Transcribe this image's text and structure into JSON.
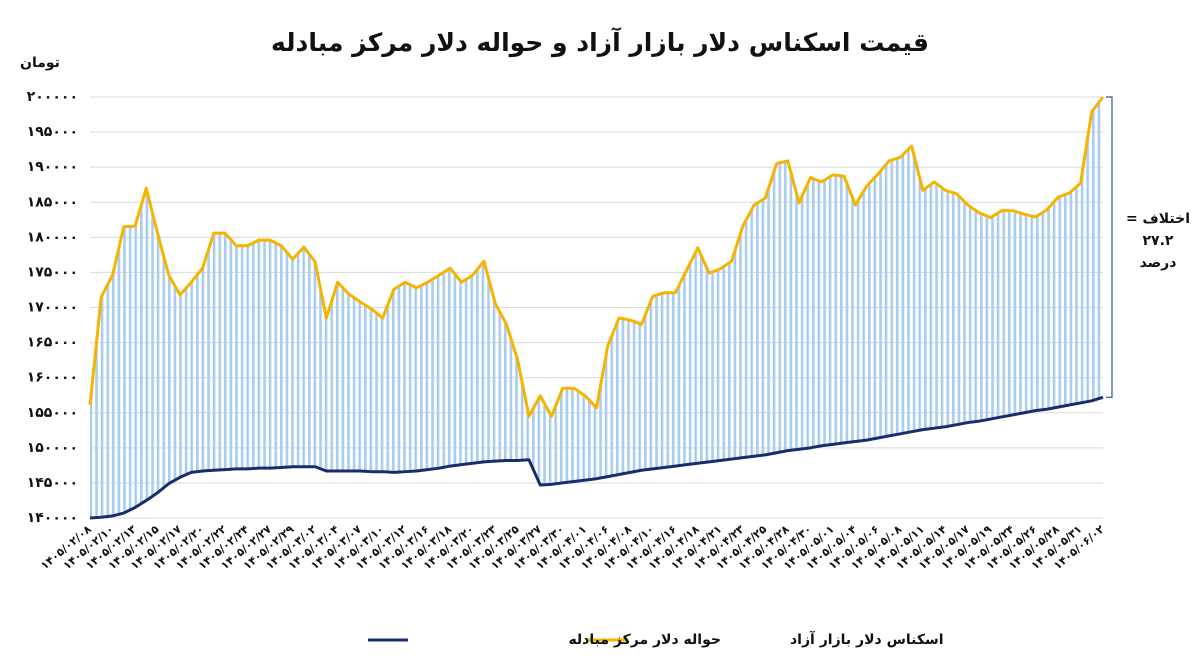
{
  "chart_data": {
    "type": "line",
    "title": "قیمت اسکناس دلار بازار آزاد و حواله دلار مرکز مبادله",
    "y_label": "تومان",
    "annotation": [
      "اختلاف =",
      "۲۷.۲",
      "درصد"
    ],
    "categories": [
      "۱۴۰۵/۰۲/۰۸",
      null,
      "۱۴۰۵/۰۲/۱۰",
      null,
      "۱۴۰۵/۰۲/۱۳",
      null,
      "۱۴۰۵/۰۲/۱۵",
      null,
      "۱۴۰۵/۰۲/۱۷",
      null,
      "۱۴۰۵/۰۲/۲۰",
      null,
      "۱۴۰۵/۰۲/۲۲",
      null,
      "۱۴۰۵/۰۲/۲۴",
      null,
      "۱۴۰۵/۰۲/۲۷",
      null,
      "۱۴۰۵/۰۲/۲۹",
      null,
      "۱۴۰۵/۰۳/۰۲",
      null,
      "۱۴۰۵/۰۳/۰۴",
      null,
      "۱۴۰۵/۰۳/۰۷",
      null,
      "۱۴۰۵/۰۳/۱۰",
      null,
      "۱۴۰۵/۰۳/۱۲",
      null,
      "۱۴۰۵/۰۳/۱۶",
      null,
      "۱۴۰۵/۰۳/۱۸",
      null,
      "۱۴۰۵/۰۳/۲۰",
      null,
      "۱۴۰۵/۰۳/۲۳",
      null,
      "۱۴۰۵/۰۳/۲۵",
      null,
      "۱۴۰۵/۰۳/۲۷",
      null,
      "۱۴۰۵/۰۳/۳۰",
      null,
      "۱۴۰۵/۰۴/۰۱",
      null,
      "۱۴۰۵/۰۴/۰۶",
      null,
      "۱۴۰۵/۰۴/۰۸",
      null,
      "۱۴۰۵/۰۴/۱۰",
      null,
      "۱۴۰۵/۰۴/۱۶",
      null,
      "۱۴۰۵/۰۴/۱۸",
      null,
      "۱۴۰۵/۰۴/۲۱",
      null,
      "۱۴۰۵/۰۴/۲۳",
      null,
      "۱۴۰۵/۰۴/۲۵",
      null,
      "۱۴۰۵/۰۴/۲۸",
      null,
      "۱۴۰۵/۰۴/۳۰",
      null,
      "۱۴۰۵/۰۵/۰۱",
      null,
      "۱۴۰۵/۰۵/۰۴",
      null,
      "۱۴۰۵/۰۵/۰۶",
      null,
      "۱۴۰۵/۰۵/۰۸",
      null,
      "۱۴۰۵/۰۵/۱۱",
      null,
      "۱۴۰۵/۰۵/۱۴",
      null,
      "۱۴۰۵/۰۵/۱۷",
      null,
      "۱۴۰۵/۰۵/۱۹",
      null,
      "۱۴۰۵/۰۵/۲۴",
      null,
      "۱۴۰۵/۰۵/۲۶",
      null,
      "۱۴۰۵/۰۵/۲۸",
      null,
      "۱۴۰۵/۰۵/۳۱",
      null,
      "۱۴۰۵/۰۶/۰۲"
    ],
    "series": [
      {
        "name": "اسکناس دلار بازار آزاد",
        "color": "#f5b400",
        "values": [
          156100,
          171500,
          174600,
          181500,
          181600,
          187000,
          180600,
          174600,
          171800,
          173600,
          175600,
          180600,
          180600,
          178800,
          178800,
          179600,
          179600,
          178800,
          176900,
          178600,
          176500,
          168500,
          173600,
          171900,
          170800,
          169800,
          168500,
          172600,
          173600,
          172800,
          173600,
          174600,
          175600,
          173600,
          174600,
          176600,
          170600,
          167600,
          162500,
          154500,
          157400,
          154500,
          158500,
          158500,
          157400,
          155700,
          164500,
          168500,
          168200,
          167600,
          171600,
          172100,
          172100,
          175300,
          178500,
          174900,
          175500,
          176600,
          181600,
          184600,
          185600,
          190500,
          190900,
          184900,
          188500,
          187900,
          188900,
          188700,
          184600,
          187300,
          189000,
          190900,
          191400,
          193000,
          186700,
          187900,
          186700,
          186200,
          184600,
          183500,
          182800,
          183800,
          183800,
          183300,
          182900,
          183900,
          185700,
          186300,
          187700,
          197900,
          200000
        ]
      },
      {
        "name": "حواله دلار مرکز مبادله",
        "color": "#1a2d6b",
        "values": [
          140000,
          140100,
          140300,
          140700,
          141500,
          142500,
          143600,
          144900,
          145800,
          146500,
          146700,
          146800,
          146900,
          147000,
          147000,
          147100,
          147100,
          147200,
          147300,
          147300,
          147300,
          146700,
          146700,
          146700,
          146700,
          146600,
          146600,
          146500,
          146600,
          146700,
          146900,
          147100,
          147400,
          147600,
          147800,
          148000,
          148100,
          148200,
          148200,
          148300,
          144700,
          144800,
          145000,
          145200,
          145400,
          145600,
          145900,
          146200,
          146500,
          146800,
          147000,
          147200,
          147400,
          147600,
          147800,
          148000,
          148200,
          148400,
          148600,
          148800,
          149000,
          149300,
          149600,
          149800,
          150000,
          150300,
          150500,
          150700,
          150900,
          151100,
          151400,
          151700,
          152000,
          152300,
          152600,
          152800,
          153000,
          153300,
          153600,
          153800,
          154100,
          154400,
          154700,
          155000,
          155300,
          155500,
          155800,
          156100,
          156400,
          156700,
          157200
        ]
      }
    ],
    "ylim": [
      140000,
      200000
    ],
    "yticks": [
      {
        "value": 140000,
        "label": "۱۴۰۰۰۰"
      },
      {
        "value": 145000,
        "label": "۱۴۵۰۰۰"
      },
      {
        "value": 150000,
        "label": "۱۵۰۰۰۰"
      },
      {
        "value": 155000,
        "label": "۱۵۵۰۰۰"
      },
      {
        "value": 160000,
        "label": "۱۶۰۰۰۰"
      },
      {
        "value": 165000,
        "label": "۱۶۵۰۰۰"
      },
      {
        "value": 170000,
        "label": "۱۷۰۰۰۰"
      },
      {
        "value": 175000,
        "label": "۱۷۵۰۰۰"
      },
      {
        "value": 180000,
        "label": "۱۸۰۰۰۰"
      },
      {
        "value": 185000,
        "label": "۱۸۵۰۰۰"
      },
      {
        "value": 190000,
        "label": "۱۹۰۰۰۰"
      },
      {
        "value": 195000,
        "label": "۱۹۵۰۰۰"
      },
      {
        "value": 200000,
        "label": "۲۰۰۰۰۰"
      }
    ],
    "grid": true,
    "legend": "bottom"
  }
}
